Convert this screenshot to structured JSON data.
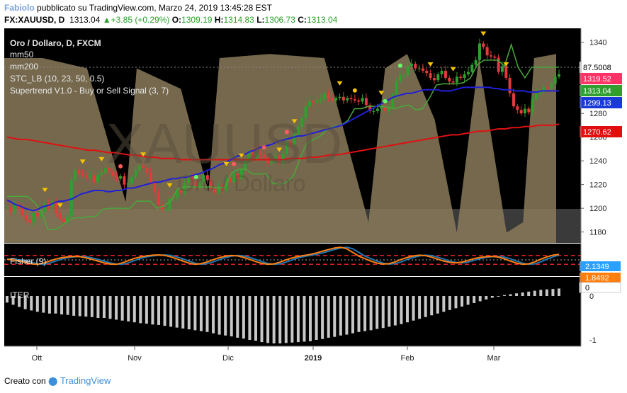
{
  "header": {
    "author": "Fabiolo",
    "published_text": "pubblicato su TradingView.com, Marzo 24, 2019 13:45:28 EST",
    "symbol": "FX:XAUUSD, D",
    "last": "1313.04",
    "change": "+3.85 (+0.29%)",
    "open_label": "O:",
    "open": "1309.19",
    "high_label": "H:",
    "high": "1314.83",
    "low_label": "L:",
    "low": "1306.73",
    "close_label": "C:",
    "close": "1313.04"
  },
  "legend": {
    "title": "Oro / Dollaro, D, FXCM",
    "mm50": "mm50",
    "mm200": "mm200",
    "stc": "STC_LB (10, 23, 50, 0.5)",
    "supertrend": "Supertrend V1.0 - Buy or Sell Signal (3, 7)",
    "fisher": "Fisher (9)",
    "iter": "ITER"
  },
  "watermark": {
    "symbol": "XAUUSD",
    "name": "Oro / Dollaro"
  },
  "footer": {
    "created_with": "Creato con",
    "brand": "TradingView"
  },
  "colors": {
    "panel_bg": "#000000",
    "stc_fill": "#8a7a5a",
    "mm50": "#2020d8",
    "mm200": "#e01010",
    "supertrend": "#49a83a",
    "candle_up": "#2fa02f",
    "candle_down": "#e33a3a",
    "fisher": "#ff7f0e",
    "fisher_trigger": "#1f77b4"
  },
  "chart_data": {
    "type": "candlestick",
    "x_ticks": [
      "Ott",
      "Nov",
      "Dic",
      "2019",
      "Feb",
      "Mar"
    ],
    "y_ticks": [
      1180,
      1200,
      1220,
      1240,
      1260,
      1280,
      1300,
      1320,
      1340
    ],
    "ylim": [
      1172,
      1350
    ],
    "price_axis_labels": [
      {
        "value": "87.5008",
        "bg": "#ffffff",
        "fg": "#000000"
      },
      {
        "value": "1319.52",
        "bg": "#ff3366",
        "fg": "#ffffff"
      },
      {
        "value": "1313.04",
        "bg": "#2fa02f",
        "fg": "#ffffff"
      },
      {
        "value": "1299.13",
        "bg": "#1a3ad8",
        "fg": "#ffffff"
      },
      {
        "value": "1270.62",
        "bg": "#e01010",
        "fg": "#ffffff"
      }
    ],
    "close": [
      1201,
      1197,
      1203,
      1200,
      1194,
      1190,
      1188,
      1196,
      1193,
      1197,
      1204,
      1201,
      1206,
      1196,
      1191,
      1188,
      1193,
      1224,
      1232,
      1229,
      1228,
      1226,
      1228,
      1222,
      1228,
      1230,
      1234,
      1231,
      1227,
      1225,
      1227,
      1220,
      1221,
      1226,
      1232,
      1236,
      1234,
      1230,
      1222,
      1214,
      1203,
      1199,
      1199,
      1208,
      1209,
      1215,
      1213,
      1221,
      1227,
      1223,
      1218,
      1221,
      1228,
      1224,
      1216,
      1213,
      1219,
      1215,
      1226,
      1222,
      1229,
      1225,
      1233,
      1240,
      1247,
      1242,
      1246,
      1245,
      1243,
      1238,
      1240,
      1244,
      1238,
      1246,
      1256,
      1253,
      1262,
      1269,
      1276,
      1286,
      1290,
      1289,
      1291,
      1292,
      1297,
      1293,
      1291,
      1293,
      1294,
      1291,
      1293,
      1292,
      1291,
      1290,
      1293,
      1287,
      1282,
      1282,
      1284,
      1286,
      1282,
      1285,
      1296,
      1307,
      1312,
      1312,
      1320,
      1322,
      1318,
      1318,
      1316,
      1314,
      1310,
      1308,
      1313,
      1316,
      1310,
      1307,
      1306,
      1311,
      1310,
      1313,
      1315,
      1321,
      1325,
      1339,
      1336,
      1329,
      1328,
      1327,
      1315,
      1320,
      1310,
      1297,
      1286,
      1283,
      1280,
      1284,
      1281,
      1292,
      1297,
      1298,
      1302,
      1301,
      1305,
      1311,
      1313
    ],
    "mm50": [
      1207,
      1205,
      1203,
      1202,
      1200,
      1199,
      1198,
      1199,
      1201,
      1202,
      1203,
      1205,
      1206,
      1206,
      1207,
      1208,
      1210,
      1212,
      1213,
      1214,
      1215,
      1215,
      1215,
      1214,
      1214,
      1215,
      1215,
      1216,
      1217,
      1217,
      1218,
      1219,
      1220,
      1221,
      1222,
      1222,
      1223,
      1224,
      1225,
      1225,
      1226,
      1226,
      1227,
      1228,
      1229,
      1230,
      1232,
      1233,
      1235,
      1237,
      1238,
      1240,
      1242,
      1244,
      1245,
      1246,
      1248,
      1249,
      1251,
      1252,
      1253,
      1254,
      1256,
      1257,
      1258,
      1259,
      1260,
      1261,
      1261,
      1262,
      1263,
      1264,
      1265,
      1266,
      1267,
      1268,
      1269,
      1270,
      1272,
      1274,
      1276,
      1278,
      1280,
      1282,
      1284,
      1286,
      1288,
      1290,
      1292,
      1294,
      1295,
      1296,
      1297,
      1297,
      1298,
      1299,
      1300,
      1300,
      1300,
      1300,
      1299,
      1299,
      1299,
      1300,
      1301,
      1302,
      1302,
      1302,
      1302,
      1302,
      1302,
      1302,
      1301,
      1301,
      1300,
      1300,
      1300,
      1299,
      1299,
      1299,
      1298,
      1298,
      1298,
      1299,
      1299,
      1299,
      1299,
      1299
    ],
    "mm200": [
      1260,
      1259,
      1258,
      1258,
      1257,
      1256,
      1255,
      1254,
      1253,
      1252,
      1251,
      1250,
      1249,
      1249,
      1248,
      1247,
      1247,
      1246,
      1245,
      1245,
      1244,
      1243,
      1243,
      1242,
      1242,
      1242,
      1241,
      1241,
      1241,
      1241,
      1241,
      1241,
      1241,
      1241,
      1241,
      1241,
      1241,
      1241,
      1241,
      1241,
      1241,
      1241,
      1242,
      1242,
      1242,
      1243,
      1243,
      1244,
      1245,
      1245,
      1246,
      1247,
      1248,
      1249,
      1250,
      1251,
      1252,
      1253,
      1254,
      1255,
      1256,
      1257,
      1258,
      1259,
      1260,
      1261,
      1262,
      1262,
      1263,
      1264,
      1265,
      1265,
      1266,
      1267,
      1267,
      1268,
      1268,
      1269,
      1269,
      1270,
      1270,
      1270,
      1271
    ],
    "supertrend": [
      1210,
      1210,
      1210,
      1210,
      1205,
      1198,
      1182,
      1182,
      1185,
      1190,
      1192,
      1192,
      1193,
      1193,
      1199,
      1200,
      1200,
      1200,
      1200,
      1206,
      1206,
      1206,
      1200,
      1202,
      1206,
      1216,
      1218,
      1218,
      1218,
      1218,
      1218,
      1217,
      1218,
      1230,
      1233,
      1233,
      1229,
      1229,
      1229,
      1221,
      1220,
      1222,
      1227,
      1242,
      1255,
      1258,
      1261,
      1267,
      1269,
      1270,
      1274,
      1284,
      1284,
      1286,
      1286,
      1286,
      1285,
      1284,
      1286,
      1287,
      1283,
      1284,
      1293,
      1304,
      1305,
      1305,
      1305,
      1306,
      1310,
      1321,
      1325,
      1325,
      1325,
      1320,
      1338,
      1319,
      1310,
      1319,
      1319,
      1319,
      1319,
      1319
    ],
    "fisher": {
      "series": [
        {
          "name": "Fisher",
          "values": [
            0.3,
            0.0,
            -0.4,
            -1.0,
            -1.6,
            -1.8,
            -1.3,
            -0.5,
            0.3,
            0.9,
            1.2,
            1.4,
            1.3,
            0.8,
            0.2,
            -0.5,
            -1.2,
            -1.7,
            -1.8,
            -1.2,
            -0.3,
            0.6,
            1.2,
            1.6,
            1.9,
            2.0,
            1.8,
            1.2,
            0.4,
            -0.5,
            -1.3,
            -1.8,
            -1.5,
            -0.8,
            0.1,
            0.9,
            1.5,
            1.8,
            1.6,
            1.0,
            0.2,
            -0.7,
            -1.4,
            -1.8,
            -1.6,
            -0.9,
            0.0,
            0.8,
            1.4,
            1.8,
            2.2,
            2.8,
            3.5,
            4.2,
            4.8,
            5.1,
            4.5,
            3.0,
            1.5,
            0.5,
            -0.5,
            -1.3,
            -1.7,
            -1.5,
            -0.8,
            0.2,
            1.0,
            1.6,
            1.9,
            1.7,
            1.1,
            0.3,
            -0.5,
            -1.0,
            -1.2,
            -0.9,
            -0.2,
            0.5,
            1.0,
            1.3,
            1.4,
            1.1,
            0.4,
            -0.5,
            -1.3,
            -1.8,
            -1.6,
            -0.8,
            0.3,
            1.2,
            1.9,
            2.2
          ]
        }
      ]
    },
    "iter": {
      "series": [
        {
          "name": "ITER",
          "values": [
            -0.15,
            -0.2,
            -0.25,
            -0.3,
            -0.33,
            -0.36,
            -0.38,
            -0.4,
            -0.4,
            -0.42,
            -0.43,
            -0.45,
            -0.46,
            -0.47,
            -0.48,
            -0.5,
            -0.5,
            -0.52,
            -0.54,
            -0.56,
            -0.58,
            -0.6,
            -0.62,
            -0.63,
            -0.65,
            -0.66,
            -0.68,
            -0.7,
            -0.72,
            -0.74,
            -0.76,
            -0.78,
            -0.8,
            -0.82,
            -0.85,
            -0.88,
            -0.9,
            -0.92,
            -0.95,
            -0.97,
            -1.0,
            -1.02,
            -1.05,
            -1.07,
            -1.08,
            -1.08,
            -1.07,
            -1.06,
            -1.05,
            -1.04,
            -1.03,
            -1.0,
            -0.98,
            -0.95,
            -0.93,
            -0.9,
            -0.88,
            -0.85,
            -0.82,
            -0.8,
            -0.78,
            -0.75,
            -0.73,
            -0.7,
            -0.67,
            -0.64,
            -0.6,
            -0.56,
            -0.52,
            -0.48,
            -0.44,
            -0.4,
            -0.36,
            -0.32,
            -0.28,
            -0.24,
            -0.2,
            -0.16,
            -0.12,
            -0.08,
            -0.04,
            0.0,
            0.02,
            0.04,
            0.06,
            0.08,
            0.1,
            0.12,
            0.14,
            0.15,
            0.16,
            0.17
          ]
        }
      ]
    }
  }
}
